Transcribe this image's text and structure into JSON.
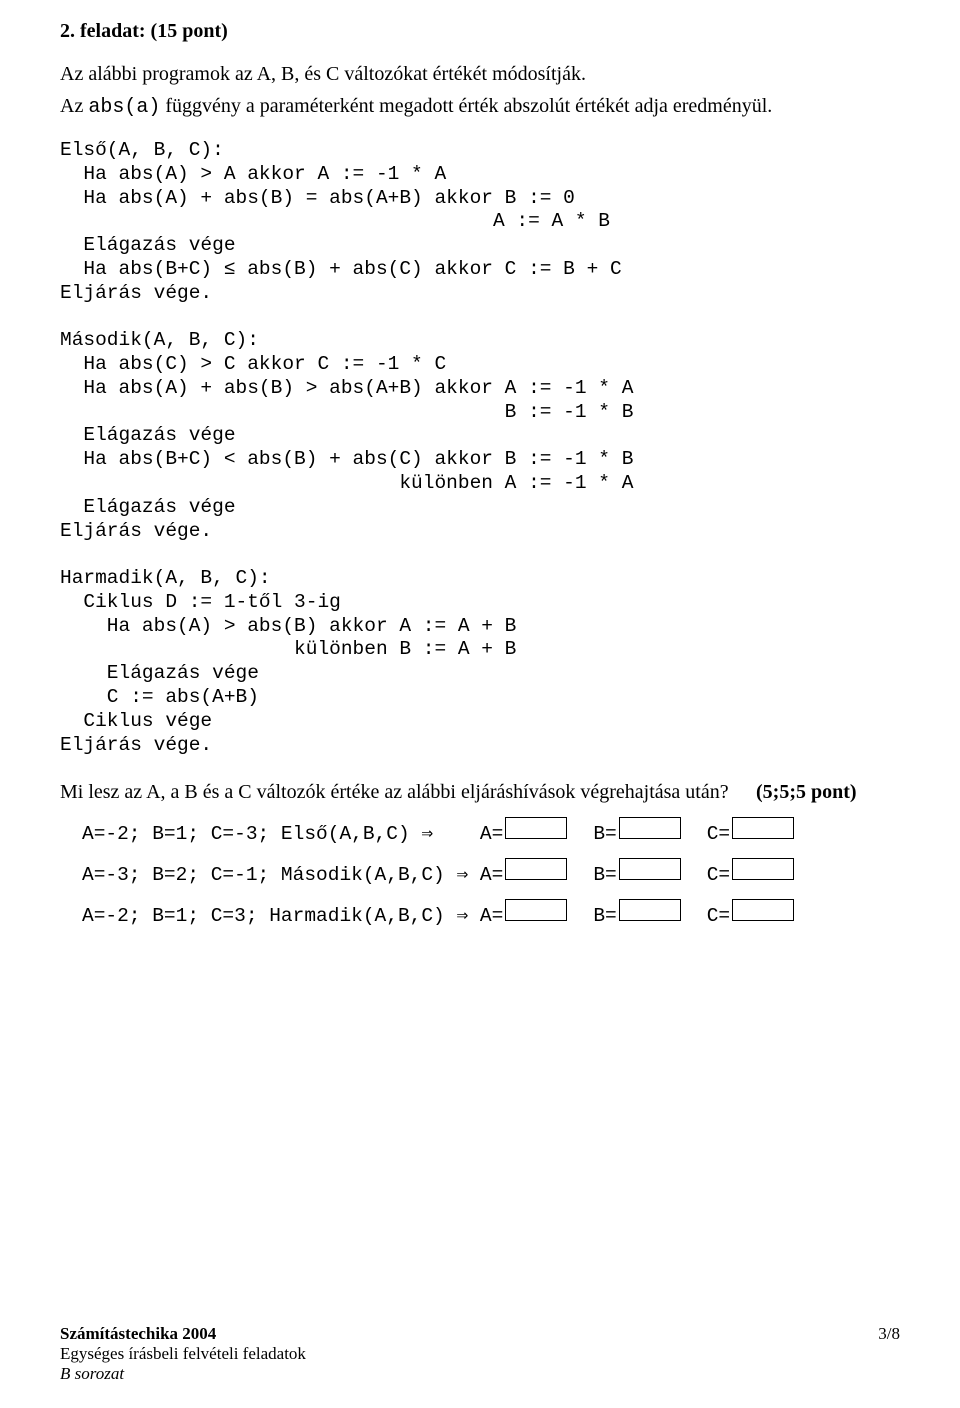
{
  "heading": "2. feladat: (15 pont)",
  "intro_line1": "Az alábbi programok az A, B, és C változókat értékét módosítják.",
  "intro_line2_pre": "Az ",
  "intro_line2_code": "abs(a)",
  "intro_line2_post": " függvény a paraméterként megadott érték abszolút értékét adja eredményül.",
  "code": "Első(A, B, C):\n  Ha abs(A) > A akkor A := -1 * A\n  Ha abs(A) + abs(B) = abs(A+B) akkor B := 0\n                                     A := A * B\n  Elágazás vége\n  Ha abs(B+C) ≤ abs(B) + abs(C) akkor C := B + C\nEljárás vége.\n\nMásodik(A, B, C):\n  Ha abs(C) > C akkor C := -1 * C\n  Ha abs(A) + abs(B) > abs(A+B) akkor A := -1 * A\n                                      B := -1 * B\n  Elágazás vége\n  Ha abs(B+C) < abs(B) + abs(C) akkor B := -1 * B\n                             különben A := -1 * A\n  Elágazás vége\nEljárás vége.\n\nHarmadik(A, B, C):\n  Ciklus D := 1-től 3-ig\n    Ha abs(A) > abs(B) akkor A := A + B\n                    különben B := A + B\n    Elágazás vége\n    C := abs(A+B)\n  Ciklus vége\nEljárás vége.",
  "question_lead": "Mi lesz az A, a B és a C változók értéke az alábbi eljáráshívások végrehajtása után?",
  "question_score": "(5;5;5 pont)",
  "answers": {
    "rows": [
      {
        "label": "A=-2; B=1; C=-3; Első(A,B,C) ⇒    "
      },
      {
        "label": "A=-3; B=2; C=-1; Második(A,B,C) ⇒ "
      },
      {
        "label": "A=-2; B=1; C=3; Harmadik(A,B,C) ⇒ "
      }
    ],
    "eqA": "A=",
    "eqB": "B=",
    "eqC": "C="
  },
  "footer": {
    "left_line1": "Számítástechika 2004",
    "left_line2": "Egységes írásbeli felvételi feladatok",
    "left_line3": "B sorozat",
    "right": "3/8"
  }
}
